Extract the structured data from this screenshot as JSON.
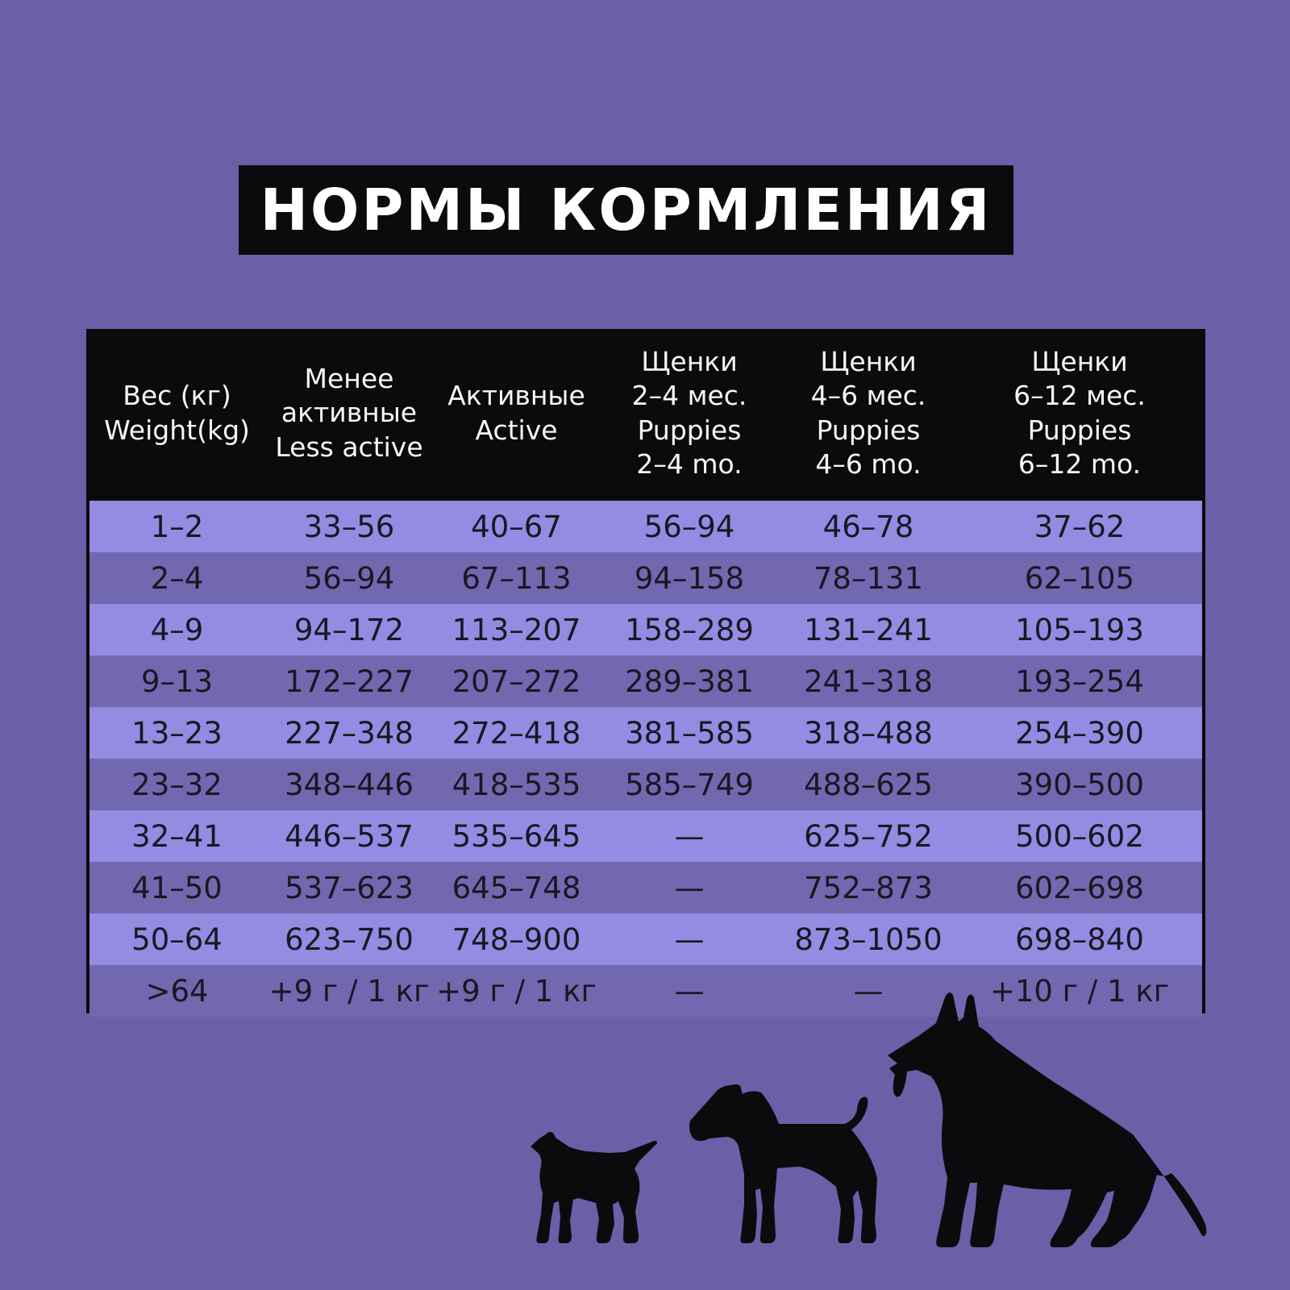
{
  "page": {
    "background_color": "#6a60a8",
    "accent_black": "#0c0a0c",
    "row_light_color": "#948be2",
    "row_dark_color": "#7168af",
    "header_text_color": "#ffffff",
    "body_text_color": "#1a1722"
  },
  "title": {
    "text": "НОРМЫ КОРМЛЕНИЯ"
  },
  "table": {
    "columns": [
      {
        "id": "weight",
        "lines": [
          "Вес (кг)",
          "Weight(kg)"
        ]
      },
      {
        "id": "less-active",
        "lines": [
          "Менее",
          "активные",
          "Less active"
        ]
      },
      {
        "id": "active",
        "lines": [
          "Активные",
          "Active"
        ]
      },
      {
        "id": "puppies-2-4",
        "lines": [
          "Щенки",
          "2–4 мес.",
          "Puppies",
          "2–4 mo."
        ]
      },
      {
        "id": "puppies-4-6",
        "lines": [
          "Щенки",
          "4–6 мес.",
          "Puppies",
          "4–6 mo."
        ]
      },
      {
        "id": "puppies-6-12",
        "lines": [
          "Щенки",
          "6–12 мес.",
          "Puppies",
          "6–12 mo."
        ]
      }
    ],
    "rows": [
      [
        "1–2",
        "33–56",
        "40–67",
        "56–94",
        "46–78",
        "37–62"
      ],
      [
        "2–4",
        "56–94",
        "67–113",
        "94–158",
        "78–131",
        "62–105"
      ],
      [
        "4–9",
        "94–172",
        "113–207",
        "158–289",
        "131–241",
        "105–193"
      ],
      [
        "9–13",
        "172–227",
        "207–272",
        "289–381",
        "241–318",
        "193–254"
      ],
      [
        "13–23",
        "227–348",
        "272–418",
        "381–585",
        "318–488",
        "254–390"
      ],
      [
        "23–32",
        "348–446",
        "418–535",
        "585–749",
        "488–625",
        "390–500"
      ],
      [
        "32–41",
        "446–537",
        "535–645",
        "—",
        "625–752",
        "500–602"
      ],
      [
        "41–50",
        "537–623",
        "645–748",
        "—",
        "752–873",
        "602–698"
      ],
      [
        "50–64",
        "623–750",
        "748–900",
        "—",
        "873–1050",
        "698–840"
      ],
      [
        ">64",
        "+9 г / 1 кг",
        "+9 г / 1 кг",
        "—",
        "—",
        "+10 г / 1 кг"
      ]
    ]
  },
  "illustrations": {
    "dogs": [
      "small-dog-silhouette",
      "medium-dog-silhouette",
      "large-dog-silhouette"
    ]
  }
}
